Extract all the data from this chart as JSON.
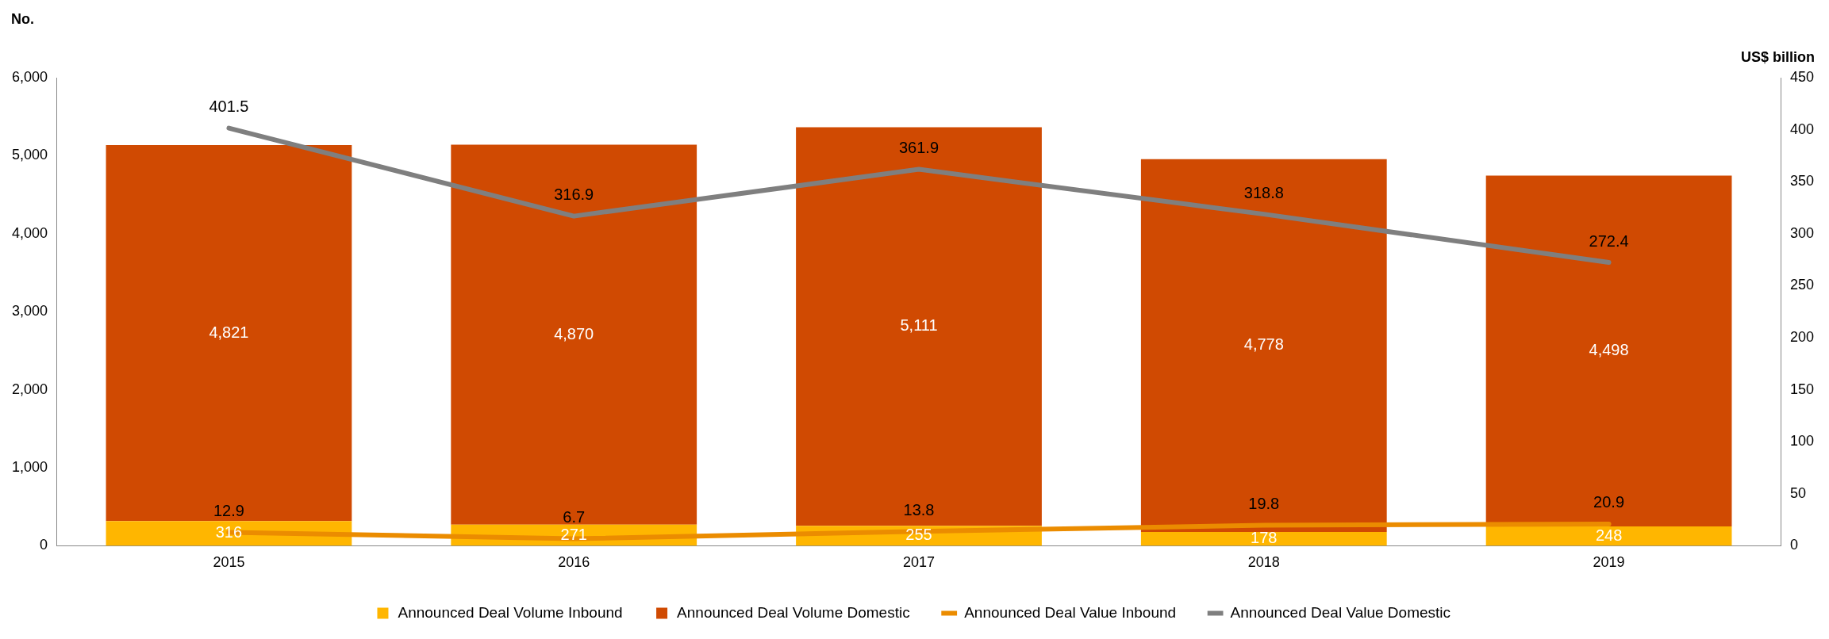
{
  "chart_data": {
    "type": "bar",
    "stacked": true,
    "categories": [
      "2015",
      "2016",
      "2017",
      "2018",
      "2019"
    ],
    "ylabel": "No.",
    "y2label": "US$ billion",
    "ylim": [
      0,
      6000
    ],
    "yticks": [
      0,
      {
        "value": 1000,
        "label": "1,000"
      },
      {
        "value": 2000,
        "label": "2,000"
      },
      {
        "value": 3000,
        "label": "3,000"
      },
      {
        "value": 4000,
        "label": "4,000"
      },
      {
        "value": 5000,
        "label": "5,000"
      },
      {
        "value": 6000,
        "label": "6,000"
      }
    ],
    "y2lim": [
      0,
      450
    ],
    "y2ticks": [
      0,
      50,
      100,
      150,
      200,
      250,
      300,
      350,
      400,
      450
    ],
    "grid": false,
    "legend": "bottom",
    "series": [
      {
        "name": "Announced Deal Volume Inbound",
        "color": "#ffb600",
        "values": [
          316,
          271,
          255,
          178,
          248
        ],
        "value_labels": [
          "316",
          "271",
          "255",
          "178",
          "248"
        ]
      },
      {
        "name": "Announced Deal Volume Domestic",
        "color": "#d04a02",
        "values": [
          4821,
          4870,
          5111,
          4778,
          4498
        ],
        "value_labels": [
          "4,821",
          "4,870",
          "5,111",
          "4,778",
          "4,498"
        ]
      },
      {
        "name": "Announced Deal Value Inbound",
        "type": "line",
        "axis": "y2",
        "color": "#eb8c00",
        "values": [
          12.9,
          6.7,
          13.8,
          19.8,
          20.9
        ],
        "value_labels": [
          "12.9",
          "6.7",
          "13.8",
          "19.8",
          "20.9"
        ]
      },
      {
        "name": "Announced Deal Value Domestic",
        "type": "line",
        "axis": "y2",
        "color": "#7f7f7f",
        "values": [
          401.5,
          316.9,
          361.9,
          318.8,
          272.4
        ],
        "value_labels": [
          "401.5",
          "316.9",
          "361.9",
          "318.8",
          "272.4"
        ]
      }
    ]
  }
}
